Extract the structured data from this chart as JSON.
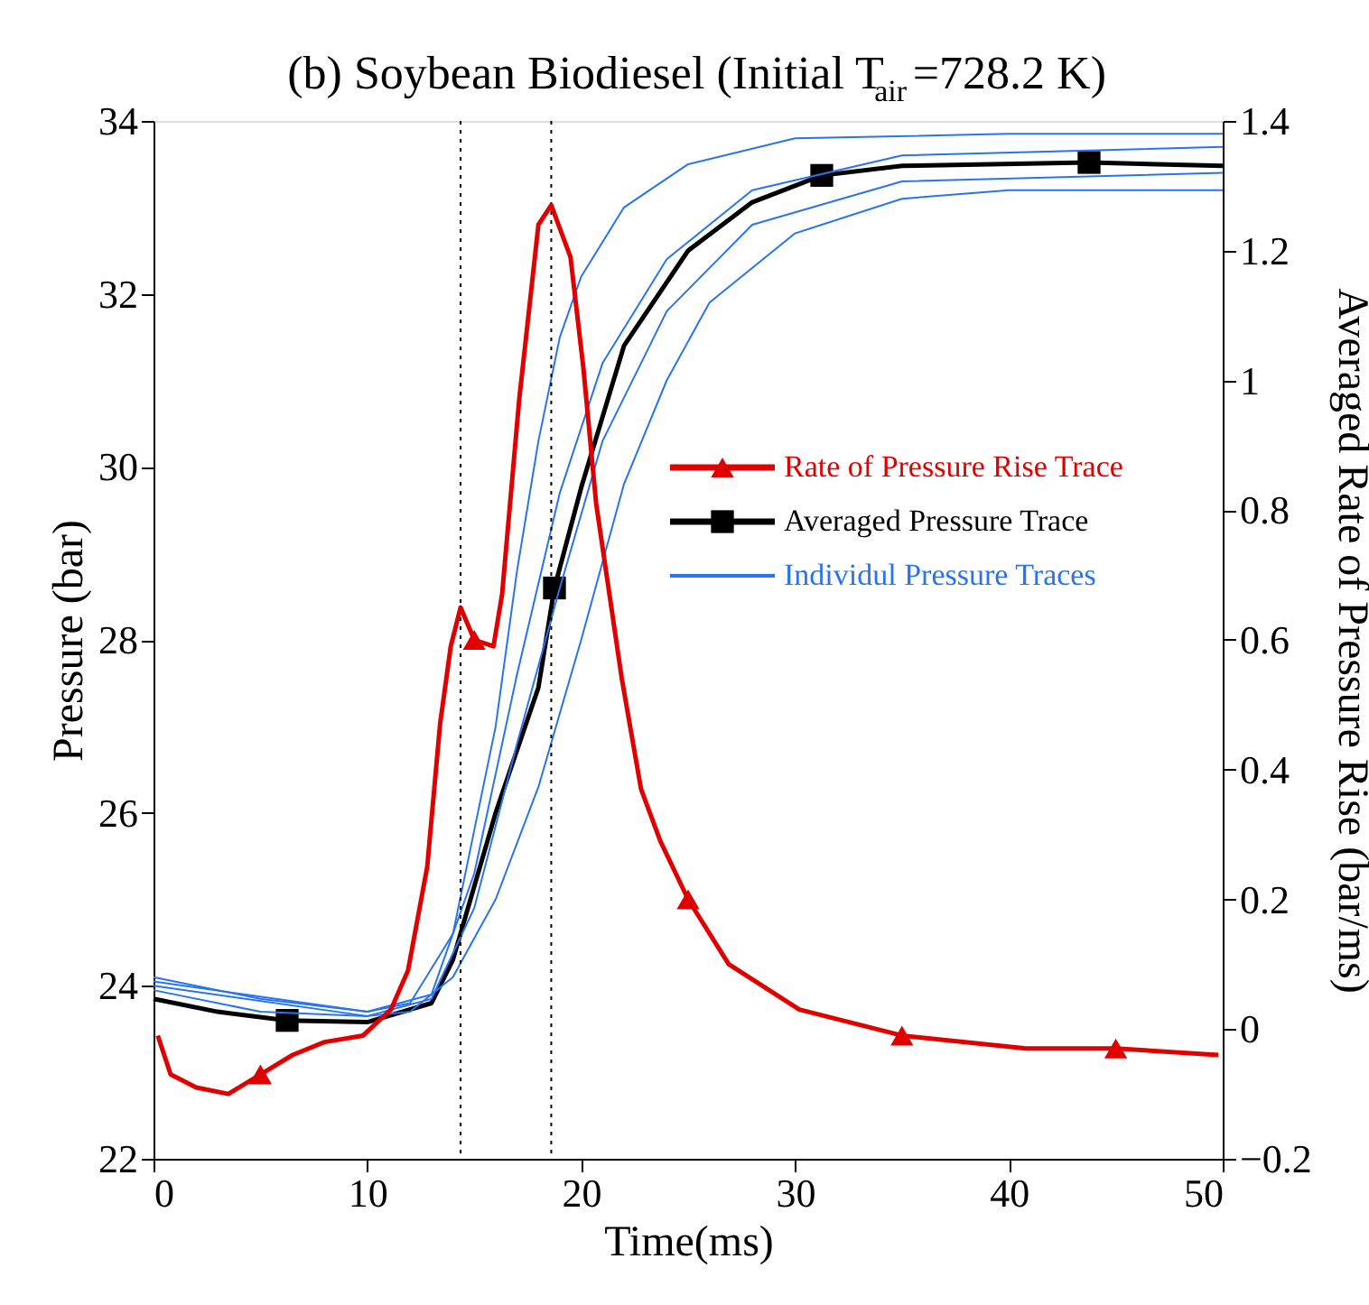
{
  "chart_data": {
    "type": "line",
    "title": "(b) Soybean Biodiesel (Initial T$_{air}$=728.2 K)",
    "xlabel": "Time(ms)",
    "ylabel": "Pressure (bar)",
    "y2label": "Averaged Rate of Pressure Rise (bar/ms)",
    "xlim": [
      0,
      50
    ],
    "xticks": [
      0,
      10,
      20,
      30,
      40,
      50
    ],
    "ylim": [
      22,
      34
    ],
    "yticks": [
      22,
      24,
      26,
      28,
      30,
      32,
      34
    ],
    "y2lim": [
      -0.2,
      1.4
    ],
    "y2ticks": [
      -0.2,
      0,
      0.2,
      0.4,
      0.6,
      0.8,
      1,
      1.2,
      1.4
    ],
    "grid": false,
    "legend": "right",
    "ref_lines": [
      {
        "axis": "x",
        "value": 14.36,
        "color": "#000000",
        "line_style": "dotted"
      },
      {
        "axis": "x",
        "value": 18.6,
        "color": "#000000",
        "line_style": "dotted"
      }
    ],
    "series": [
      {
        "type": "scatter",
        "color": "#e00000",
        "axis": "y2",
        "marker": "triangle",
        "x": [
          5,
          15,
          25,
          35,
          45
        ],
        "values": [
          -0.07,
          0.6,
          0.2,
          -0.01,
          -0.03
        ]
      },
      {
        "type": "scatter",
        "color": "#000000",
        "marker": "square",
        "x": [
          6.25,
          18.75,
          31.25,
          43.75
        ],
        "values": [
          23.6,
          28.6,
          33.37,
          33.52
        ]
      },
      {
        "name": "Rate of Pressure Rise Trace",
        "color": "#e00000",
        "axis": "y2",
        "marker": "none",
        "line_style": "solid",
        "x": [
          0.2,
          0.8,
          2,
          3.5,
          5,
          6.5,
          8,
          9.8,
          11.1,
          11.9,
          12.8,
          13.4,
          13.9,
          14.36,
          15,
          15.9,
          16.3,
          17.1,
          18,
          18.6,
          19.5,
          20.1,
          20.7,
          21.9,
          22.8,
          23.7,
          25,
          26.9,
          30.2,
          35,
          40.8,
          45,
          49.8
        ],
        "values": [
          -0.01,
          -0.07,
          -0.09,
          -0.1,
          -0.07,
          -0.04,
          -0.02,
          -0.01,
          0.03,
          0.09,
          0.25,
          0.47,
          0.59,
          0.65,
          0.6,
          0.59,
          0.67,
          0.97,
          1.24,
          1.27,
          1.19,
          1.02,
          0.81,
          0.54,
          0.37,
          0.29,
          0.2,
          0.1,
          0.03,
          -0.01,
          -0.03,
          -0.03,
          -0.04
        ]
      },
      {
        "name": "Averaged Pressure Trace",
        "color": "#000000",
        "marker": "none",
        "line_style": "solid",
        "x": [
          0,
          3,
          6.25,
          10,
          13,
          14,
          16,
          18,
          18.75,
          20,
          22,
          25,
          28,
          31.25,
          35,
          43.75,
          50
        ],
        "values": [
          23.85,
          23.7,
          23.6,
          23.58,
          23.8,
          24.3,
          26.0,
          27.45,
          28.6,
          29.76,
          31.4,
          32.5,
          33.06,
          33.37,
          33.48,
          33.52,
          33.48
        ]
      },
      {
        "name": "Individul Pressure Traces",
        "color": "#2874f0",
        "marker": "none",
        "line_style": "solid",
        "x": [
          0,
          5,
          10,
          12,
          14,
          16,
          17,
          18,
          19,
          20,
          22,
          25,
          30,
          40,
          50
        ],
        "values": [
          24.1,
          23.85,
          23.7,
          23.8,
          24.6,
          27.0,
          28.8,
          30.3,
          31.5,
          32.2,
          33.0,
          33.5,
          33.8,
          33.85,
          33.85
        ]
      },
      {
        "color": "#2874f0",
        "marker": "none",
        "line_style": "solid",
        "x": [
          0,
          10,
          13,
          15,
          17,
          19,
          21,
          24,
          28,
          35,
          50
        ],
        "values": [
          24.05,
          23.7,
          23.9,
          25.3,
          27.6,
          29.7,
          31.2,
          32.4,
          33.2,
          33.6,
          33.7
        ]
      },
      {
        "color": "#2874f0",
        "marker": "none",
        "line_style": "solid",
        "x": [
          0,
          10,
          13,
          15,
          17,
          19,
          21,
          24,
          28,
          35,
          50
        ],
        "values": [
          24.0,
          23.65,
          23.85,
          24.9,
          26.8,
          28.6,
          30.3,
          31.8,
          32.8,
          33.3,
          33.4
        ]
      },
      {
        "color": "#2874f0",
        "marker": "none",
        "line_style": "solid",
        "x": [
          0,
          5,
          10,
          12,
          14,
          16,
          18,
          20,
          22,
          24,
          26,
          30,
          35,
          40,
          50
        ],
        "values": [
          23.95,
          23.7,
          23.65,
          23.7,
          24.1,
          25.0,
          26.3,
          28.0,
          29.8,
          31.0,
          31.9,
          32.7,
          33.1,
          33.2,
          33.2
        ]
      }
    ]
  }
}
